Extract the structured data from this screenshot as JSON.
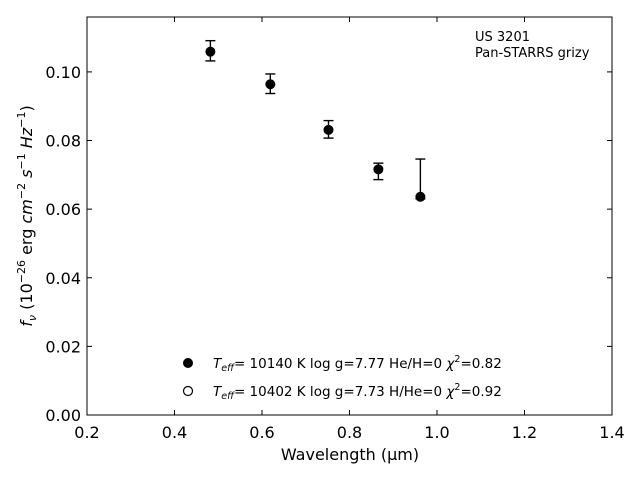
{
  "chart_data": {
    "type": "scatter",
    "title": "",
    "xlabel": "Wavelength (μm)",
    "ylabel_parts": {
      "f": "f",
      "nu": "ν",
      "open": " (10",
      "exp1": "−26",
      "erg": " erg ",
      "cm": "cm",
      "exp2": "−2",
      "s": " s",
      "exp3": "−1",
      "hz": " Hz",
      "exp4": "−1",
      "close": ")"
    },
    "xlim": [
      0.2,
      1.4
    ],
    "ylim": [
      0.0,
      0.116
    ],
    "x_ticks": [
      "0.2",
      "0.4",
      "0.6",
      "0.8",
      "1.0",
      "1.2",
      "1.4"
    ],
    "y_ticks": [
      "0.00",
      "0.02",
      "0.04",
      "0.06",
      "0.08",
      "0.10"
    ],
    "grid": false,
    "annotation": {
      "line1": "US 3201",
      "line2": "Pan-STARRS grizy"
    },
    "legend": {
      "placement": "lower-center",
      "entries": [
        {
          "marker": "filled-circle",
          "T": "T",
          "eff": "eff",
          "eq": "= 10140 K  log g=7.77  He/H=0  ",
          "chi": "χ",
          "two": "2",
          "chival": "=0.82"
        },
        {
          "marker": "open-circle",
          "T": "T",
          "eff": "eff",
          "eq": "= 10402 K  log g=7.73  H/He=0  ",
          "chi": "χ",
          "two": "2",
          "chival": "=0.92"
        }
      ]
    },
    "series": [
      {
        "marker": "filled-circle",
        "points": [
          {
            "x": 0.482,
            "y": 0.1059,
            "err_low": 0.0027,
            "err_high": 0.0032
          },
          {
            "x": 0.619,
            "y": 0.0964,
            "err_low": 0.0027,
            "err_high": 0.003
          },
          {
            "x": 0.752,
            "y": 0.0831,
            "err_low": 0.0024,
            "err_high": 0.0027
          },
          {
            "x": 0.866,
            "y": 0.0716,
            "err_low": 0.003,
            "err_high": 0.0018
          },
          {
            "x": 0.962,
            "y": 0.0636,
            "err_low": 0.0006,
            "err_high": 0.011
          }
        ]
      }
    ]
  }
}
